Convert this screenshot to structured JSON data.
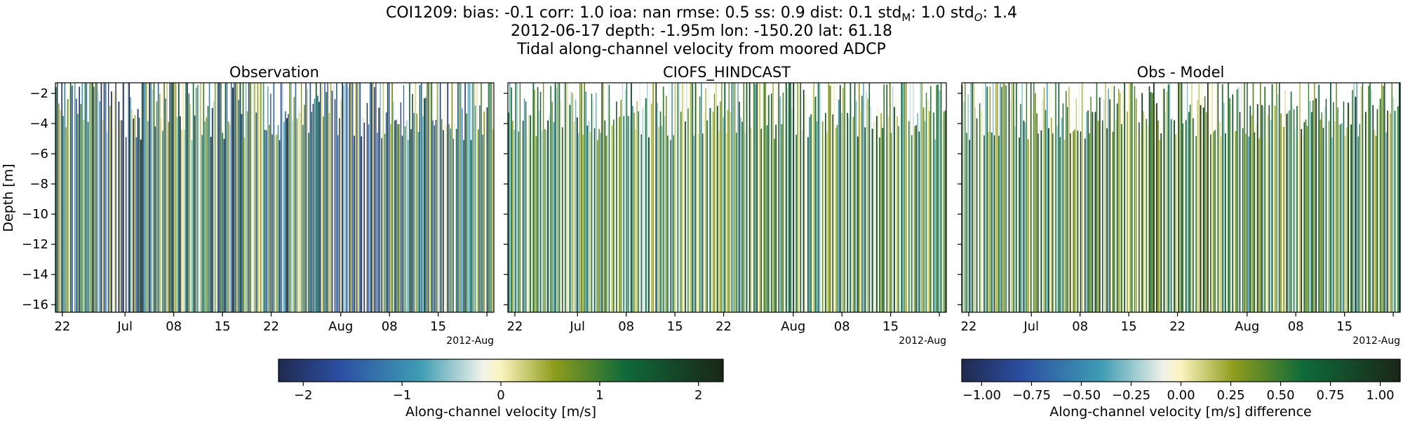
{
  "figure": {
    "title_line1_prefix": "COI1209: bias: -0.1  corr: 1.0  ioa: nan  rmse: 0.5  ss: 0.9  dist: 0.1  std",
    "title_line1_m_sub": "M",
    "title_line1_mid": ": 1.0  std",
    "title_line1_o_sub": "O",
    "title_line1_suffix": ": 1.4",
    "title_line2": "2012-06-17 depth: -1.95m lon: -150.20 lat: 61.18",
    "title_line3": "Tidal along-channel velocity from moored ADCP"
  },
  "colors": {
    "map_low": "#202a4f",
    "map_blue": "#2c4fa3",
    "map_teal": "#3e9db3",
    "map_pale": "#f0f3ea",
    "map_cream": "#fcf4bf",
    "map_olive": "#8e9c1c",
    "map_green": "#0f6a3a",
    "map_dark": "#1a2617"
  },
  "chart_data": [
    {
      "type": "heatmap",
      "title": "Observation",
      "ylabel": "Depth [m]",
      "xlabel": "",
      "ylim": [
        -16.5,
        -1.3
      ],
      "yticks": [
        -2,
        -4,
        -6,
        -8,
        -10,
        -12,
        -14,
        -16
      ],
      "ytick_labels": [
        "−2",
        "−4",
        "−6",
        "−8",
        "−10",
        "−12",
        "−14",
        "−16"
      ],
      "xlim_days": [
        0,
        63
      ],
      "xticks_days": [
        1,
        10,
        17,
        24,
        31,
        41,
        48,
        55,
        62
      ],
      "xtick_labels": [
        "22",
        "Jul",
        "08",
        "15",
        "22",
        "Aug",
        "08",
        "15",
        ""
      ],
      "x_offset_label": "2012-Aug",
      "x_start": "2012-06-17",
      "value_range": [
        -2.25,
        2.25
      ],
      "pattern": {
        "seed": 11,
        "base_bias": -0.15,
        "amp": 1.7,
        "dark_regions": [
          [
            6,
            12
          ],
          [
            40,
            47
          ]
        ],
        "gaps": 0.55
      }
    },
    {
      "type": "heatmap",
      "title": "CIOFS_HINDCAST",
      "ylabel": "",
      "xlabel": "",
      "ylim": [
        -16.5,
        -1.3
      ],
      "yticks": [
        -2,
        -4,
        -6,
        -8,
        -10,
        -12,
        -14,
        -16
      ],
      "xlim_days": [
        0,
        63
      ],
      "xticks_days": [
        1,
        10,
        17,
        24,
        31,
        41,
        48,
        55,
        62
      ],
      "xtick_labels": [
        "22",
        "Jul",
        "08",
        "15",
        "22",
        "Aug",
        "08",
        "15",
        ""
      ],
      "x_offset_label": "2012-Aug",
      "x_start": "2012-06-17",
      "value_range": [
        -2.25,
        2.25
      ],
      "pattern": {
        "seed": 23,
        "base_bias": 0.55,
        "amp": 1.1,
        "dark_regions": [],
        "gaps": 0.7
      }
    },
    {
      "type": "heatmap",
      "title": "Obs - Model",
      "ylabel": "",
      "xlabel": "",
      "ylim": [
        -16.5,
        -1.3
      ],
      "yticks": [
        -2,
        -4,
        -6,
        -8,
        -10,
        -12,
        -14,
        -16
      ],
      "xlim_days": [
        0,
        63
      ],
      "xticks_days": [
        1,
        10,
        17,
        24,
        31,
        41,
        48,
        55,
        62
      ],
      "xtick_labels": [
        "22",
        "Jul",
        "08",
        "15",
        "22",
        "Aug",
        "08",
        "15",
        ""
      ],
      "x_offset_label": "2012-Aug",
      "x_start": "2012-06-17",
      "value_range": [
        -1.1,
        1.1
      ],
      "pattern": {
        "seed": 37,
        "base_bias": 0.35,
        "amp": 0.55,
        "dark_regions": [],
        "gaps": 0.75
      }
    }
  ],
  "colorbars": [
    {
      "label": "Along-channel velocity [m/s]",
      "range": [
        -2.25,
        2.25
      ],
      "ticks": [
        -2,
        -1,
        0,
        1,
        2
      ],
      "tick_labels": [
        "−2",
        "−1",
        "0",
        "1",
        "2"
      ]
    },
    {
      "label": "Along-channel velocity [m/s] difference",
      "range": [
        -1.1,
        1.1
      ],
      "ticks": [
        -1.0,
        -0.75,
        -0.5,
        -0.25,
        0.0,
        0.25,
        0.5,
        0.75,
        1.0
      ],
      "tick_labels": [
        "−1.00",
        "−0.75",
        "−0.50",
        "−0.25",
        "0.00",
        "0.25",
        "0.50",
        "0.75",
        "1.00"
      ]
    }
  ]
}
